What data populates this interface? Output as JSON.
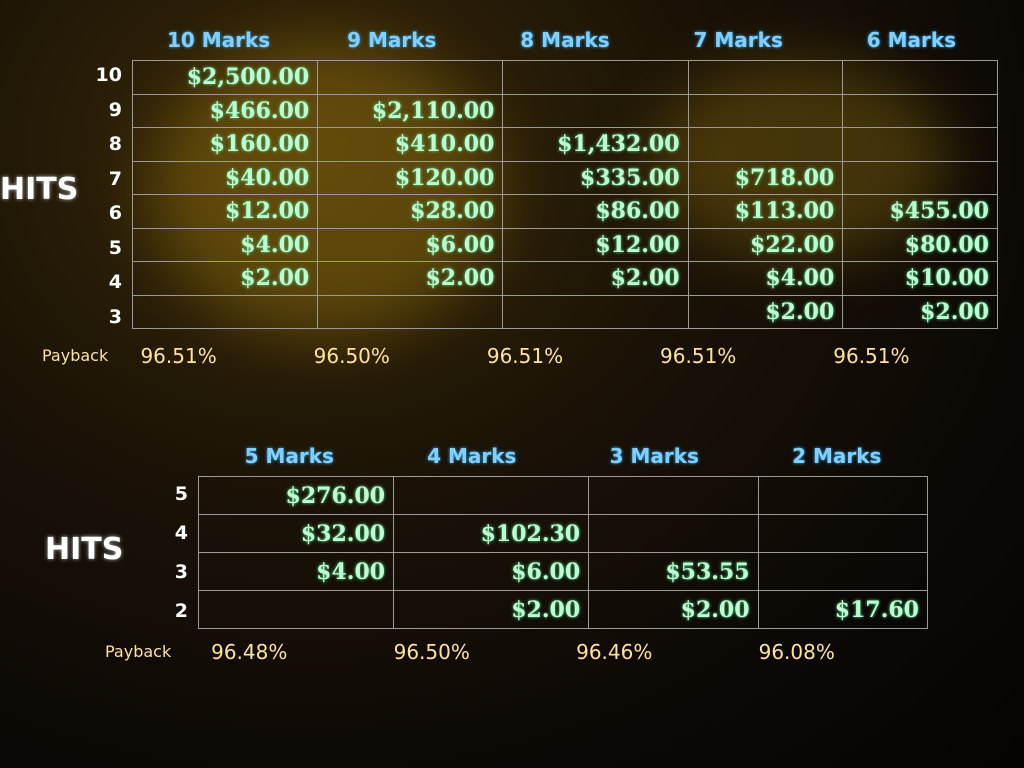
{
  "top": {
    "hits_label": "HITS",
    "payback_label": "Payback",
    "columns": [
      "10 Marks",
      "9 Marks",
      "8 Marks",
      "7 Marks",
      "6 Marks"
    ],
    "rows": [
      "10",
      "9",
      "8",
      "7",
      "6",
      "5",
      "4",
      "3"
    ],
    "cells": [
      [
        "$2,500.00",
        "",
        "",
        "",
        ""
      ],
      [
        "$466.00",
        "$2,110.00",
        "",
        "",
        ""
      ],
      [
        "$160.00",
        "$410.00",
        "$1,432.00",
        "",
        ""
      ],
      [
        "$40.00",
        "$120.00",
        "$335.00",
        "$718.00",
        ""
      ],
      [
        "$12.00",
        "$28.00",
        "$86.00",
        "$113.00",
        "$455.00"
      ],
      [
        "$4.00",
        "$6.00",
        "$12.00",
        "$22.00",
        "$80.00"
      ],
      [
        "$2.00",
        "$2.00",
        "$2.00",
        "$4.00",
        "$10.00"
      ],
      [
        "",
        "",
        "",
        "$2.00",
        "$2.00"
      ]
    ],
    "payback": [
      "96.51%",
      "96.50%",
      "96.51%",
      "96.51%",
      "96.51%"
    ]
  },
  "bottom": {
    "hits_label": "HITS",
    "payback_label": "Payback",
    "columns": [
      "5 Marks",
      "4 Marks",
      "3 Marks",
      "2 Marks"
    ],
    "rows": [
      "5",
      "4",
      "3",
      "2"
    ],
    "cells": [
      [
        "$276.00",
        "",
        "",
        ""
      ],
      [
        "$32.00",
        "$102.30",
        "",
        ""
      ],
      [
        "$4.00",
        "$6.00",
        "$53.55",
        ""
      ],
      [
        "",
        "$2.00",
        "$2.00",
        "$17.60"
      ]
    ],
    "payback": [
      "96.48%",
      "96.50%",
      "96.46%",
      "96.08%"
    ]
  }
}
